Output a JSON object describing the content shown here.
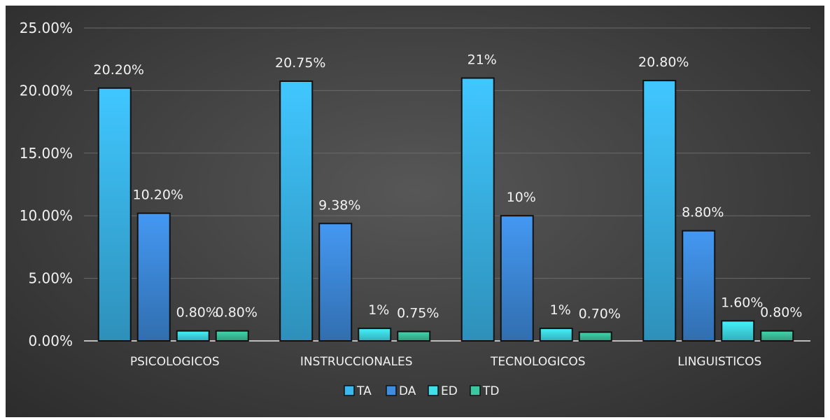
{
  "chart_data": {
    "type": "bar",
    "categories": [
      "PSICOLOGICOS",
      "INSTRUCCIONALES",
      "TECNOLOGICOS",
      "LINGUISTICOS"
    ],
    "series": [
      {
        "name": "TA",
        "values": [
          20.2,
          20.75,
          21.0,
          20.8
        ],
        "labels": [
          "20.20%",
          "20.75%",
          "21%",
          "20.80%"
        ]
      },
      {
        "name": "DA",
        "values": [
          10.2,
          9.38,
          10.0,
          8.8
        ],
        "labels": [
          "10.20%",
          "9.38%",
          "10%",
          "8.80%"
        ]
      },
      {
        "name": "ED",
        "values": [
          0.8,
          1.0,
          1.0,
          1.6
        ],
        "labels": [
          "0.80%",
          "1%",
          "1%",
          "1.60%"
        ]
      },
      {
        "name": "TD",
        "values": [
          0.8,
          0.75,
          0.7,
          0.8
        ],
        "labels": [
          "0.80%",
          "0.75%",
          "0.70%",
          "0.80%"
        ]
      }
    ],
    "yticks": [
      "0.00%",
      "5.00%",
      "10.00%",
      "15.00%",
      "20.00%",
      "25.00%"
    ],
    "ylim": [
      0,
      25
    ],
    "grid": true,
    "legend_position": "bottom",
    "colors": {
      "TA": "#3bb8ee",
      "DA": "#3f8de0",
      "ED": "#3fe0ea",
      "TD": "#3dc7a0"
    }
  }
}
